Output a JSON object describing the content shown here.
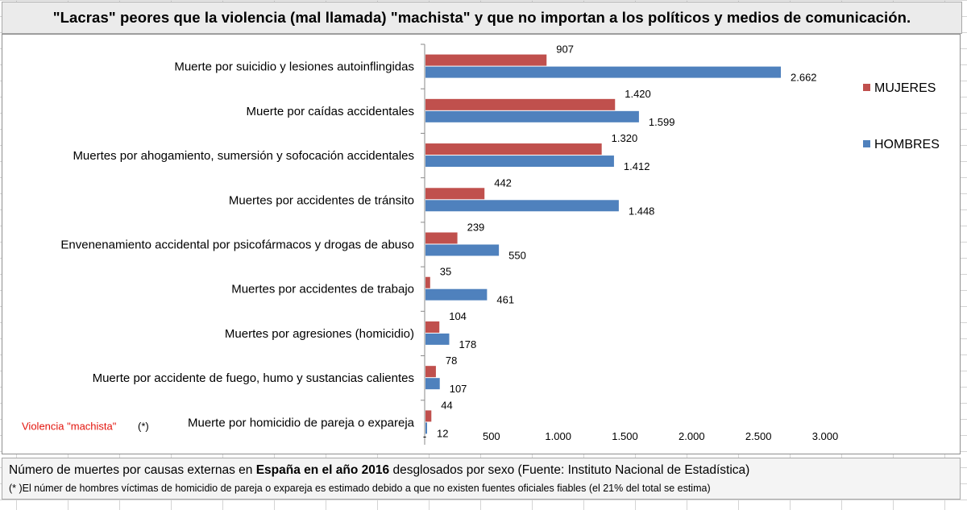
{
  "title": "\"Lacras\" peores que la violencia (mal llamada) \"machista\" y que no importan a los políticos y medios de comunicación.",
  "colors": {
    "mujeres": "#c0504d",
    "hombres": "#4f81bd",
    "note": "#e3140c"
  },
  "chart_data": {
    "type": "bar",
    "orientation": "horizontal",
    "title": "\"Lacras\" peores que la violencia (mal llamada) \"machista\" y que no importan a los políticos y medios de comunicación.",
    "xlabel": "",
    "ylabel": "",
    "xlim": [
      0,
      3000
    ],
    "xticks": [
      0,
      500,
      1000,
      1500,
      2000,
      2500,
      3000
    ],
    "xtick_labels": [
      "-",
      "500",
      "1.000",
      "1.500",
      "2.000",
      "2.500",
      "3.000"
    ],
    "grid": false,
    "legend_position": "right",
    "categories": [
      "Muerte por suicidio y lesiones autoinflingidas",
      "Muerte por caídas accidentales",
      "Muertes por ahogamiento, sumersión y sofocación accidentales",
      "Muertes por accidentes de tránsito",
      "Envenenamiento accidental por psicofármacos y drogas de abuso",
      "Muertes por accidentes de trabajo",
      "Muertes por agresiones (homicidio)",
      "Muerte por accidente de fuego, humo y sustancias calientes",
      "Muerte por homicidio de pareja o expareja"
    ],
    "series": [
      {
        "name": "MUJERES",
        "values": [
          907,
          1420,
          1320,
          442,
          239,
          35,
          104,
          78,
          44
        ],
        "labels": [
          "907",
          "1.420",
          "1.320",
          "442",
          "239",
          "35",
          "104",
          "78",
          "44"
        ]
      },
      {
        "name": "HOMBRES",
        "values": [
          2662,
          1599,
          1412,
          1448,
          550,
          461,
          178,
          107,
          12
        ],
        "labels": [
          "2.662",
          "1.599",
          "1.412",
          "1.448",
          "550",
          "461",
          "178",
          "107",
          "12"
        ]
      }
    ],
    "annotations": {
      "note_red": "Violencia \"machista\"",
      "note_asterisk": "(*)"
    }
  },
  "footer": {
    "line1_prefix": "Número de muertes por causas externas en ",
    "line1_bold": "España en el año 2016",
    "line1_suffix": " desglosados por sexo (Fuente: Instituto Nacional de Estadística)",
    "line2": "(* )El númer de hombres víctimas de homicidio de pareja o expareja es estimado debido a que no existen fuentes oficiales fiables (el 21% del total se estima)"
  }
}
